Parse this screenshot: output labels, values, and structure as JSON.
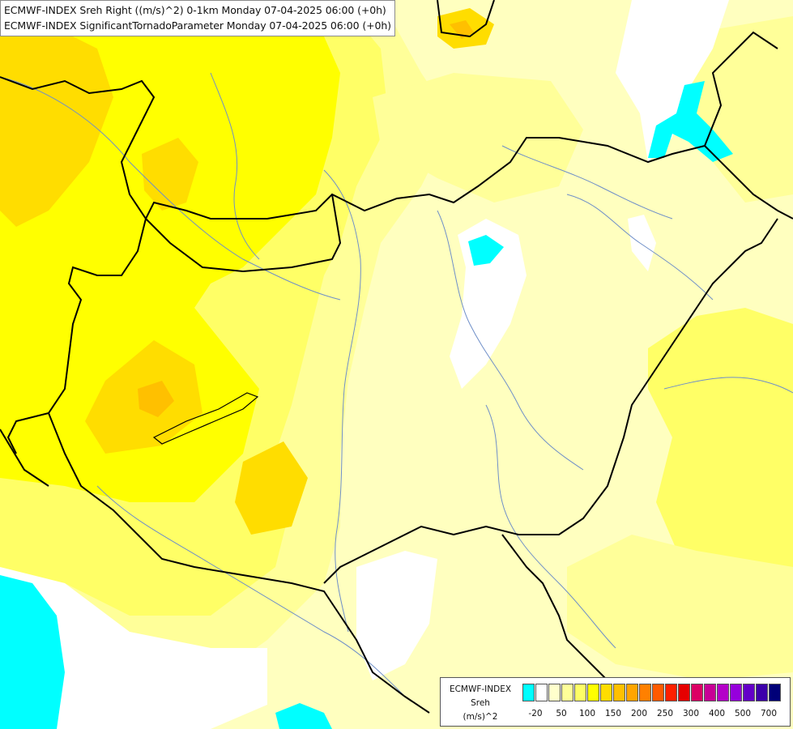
{
  "title": {
    "line1": "ECMWF-INDEX Sreh Right ((m/s)^2) 0-1km Monday 07-04-2025 06:00 (+0h)",
    "line2": "ECMWF-INDEX SignificantTornadoParameter Monday 07-04-2025 06:00 (+0h)"
  },
  "legend": {
    "source": "ECMWF-INDEX",
    "variable": "Sreh",
    "unit": "(m/s)^2",
    "colors": [
      "#00ffff",
      "#ffffff",
      "#ffffcc",
      "#ffff99",
      "#ffff66",
      "#ffff00",
      "#ffdd00",
      "#ffc000",
      "#ffa500",
      "#ff8000",
      "#ff5a00",
      "#ff2000",
      "#e60000",
      "#dc0064",
      "#c80096",
      "#b400c8",
      "#9600dc",
      "#6400c8",
      "#3c00aa",
      "#000078"
    ],
    "tick_labels": [
      "-20",
      "50",
      "100",
      "150",
      "200",
      "250",
      "300",
      "400",
      "500",
      "700"
    ]
  },
  "map": {
    "palette": {
      "pale": "#ffffbf",
      "light": "#ffff99",
      "mid": "#ffff66",
      "yellow": "#ffff00",
      "gold": "#ffdd00",
      "orange": "#ffc000",
      "white": "#ffffff",
      "cyan": "#00ffff",
      "border": "#000000",
      "river": "#6f8fc8"
    }
  }
}
